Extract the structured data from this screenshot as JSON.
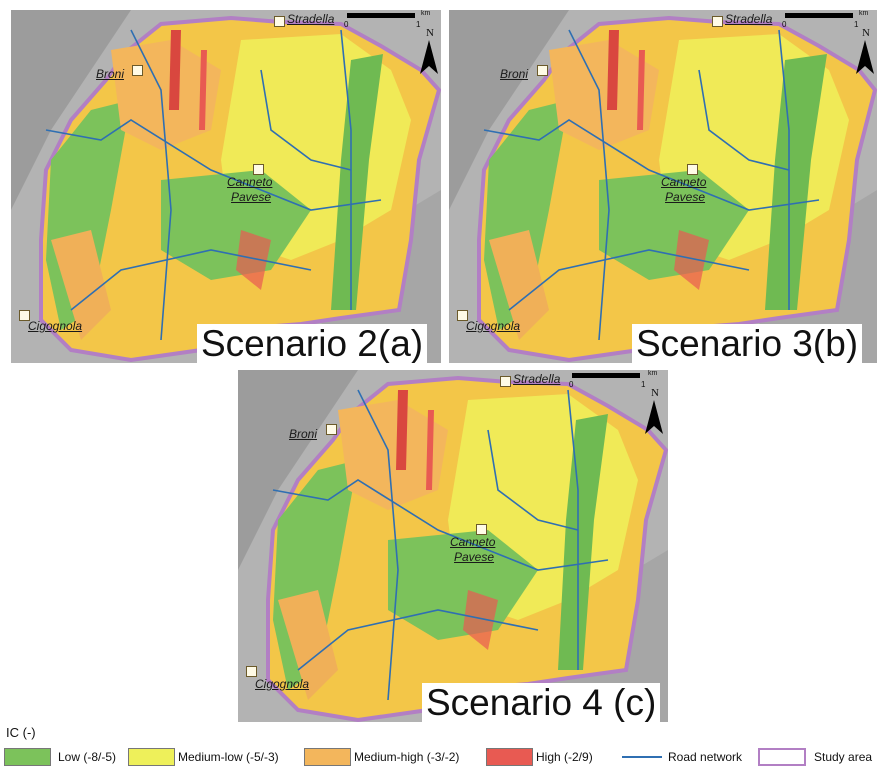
{
  "panels": [
    {
      "id": "a",
      "scenario_label": "Scenario 2(a)"
    },
    {
      "id": "b",
      "scenario_label": "Scenario 3(b)"
    },
    {
      "id": "c",
      "scenario_label": "Scenario 4 (c)"
    }
  ],
  "towns": {
    "stradella": "Stradella",
    "broni": "Broni",
    "canneto": "Canneto",
    "pavese": "Pavese",
    "cigognola": "Cigognola"
  },
  "scalebar": {
    "unit": "km",
    "zero": "0",
    "one": "1"
  },
  "north_label": "N",
  "legend": {
    "title": "IC (-)",
    "items": [
      {
        "label": "Low (-8/-5)",
        "color": "#7cc25b",
        "kind": "fill"
      },
      {
        "label": "Medium-low (-5/-3)",
        "color": "#eef05a",
        "kind": "fill"
      },
      {
        "label": "Medium-high (-3/-2)",
        "color": "#f3b65c",
        "kind": "fill"
      },
      {
        "label": "High (-2/9)",
        "color": "#e85a52",
        "kind": "fill"
      },
      {
        "label": "Road network",
        "color": "#2f6fb2",
        "kind": "line"
      },
      {
        "label": "Study area",
        "color": "#b27fc4",
        "kind": "outline"
      }
    ]
  }
}
